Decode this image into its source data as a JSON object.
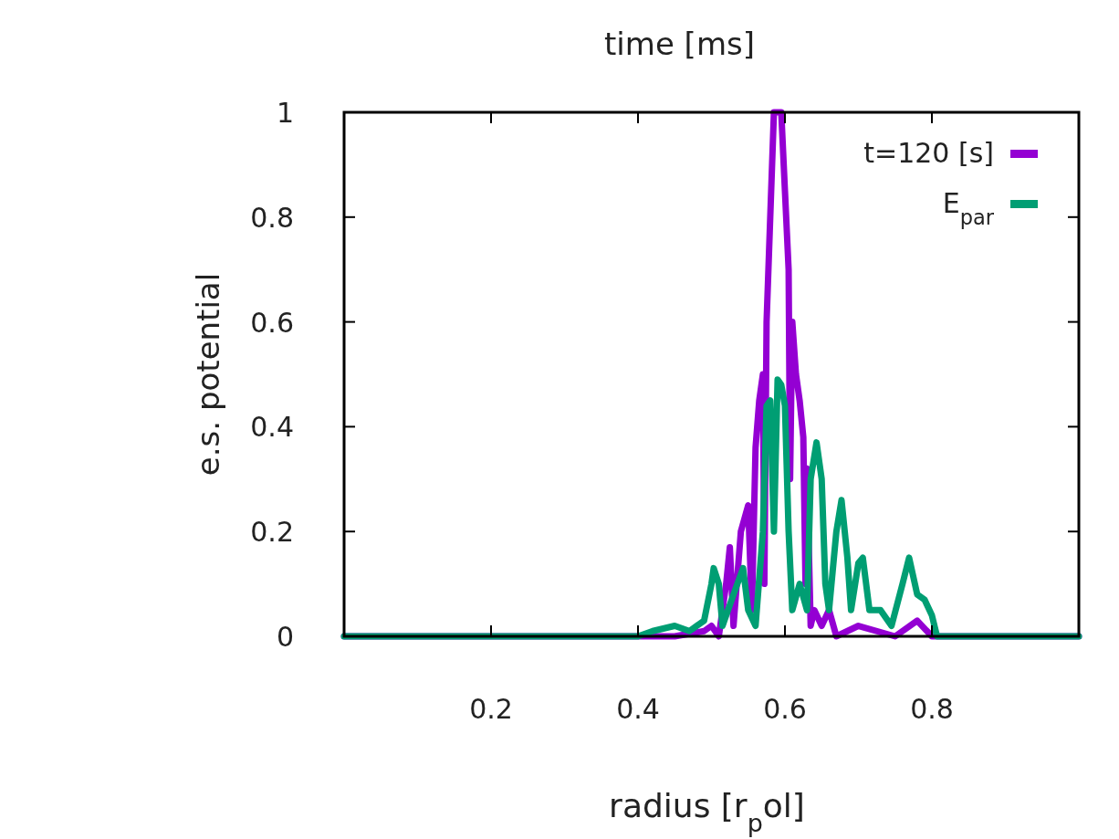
{
  "chart_data": {
    "type": "line",
    "title": "time [ms]",
    "xlabel": "radius [r$_{p}$ol]",
    "ylabel": "e.s. potential",
    "xlim": [
      0,
      1
    ],
    "ylim": [
      0,
      1
    ],
    "xticks": [
      0.2,
      0.4,
      0.6,
      0.8
    ],
    "yticks": [
      0,
      0.2,
      0.4,
      0.6,
      0.8,
      1
    ],
    "grid": false,
    "legend": "top right",
    "line_style": "solid",
    "marker": "none",
    "series": [
      {
        "name": "t=120 [s]",
        "color": "#9400d3",
        "x": [
          0,
          0.45,
          0.49,
          0.5,
          0.51,
          0.52,
          0.525,
          0.53,
          0.54,
          0.55,
          0.555,
          0.56,
          0.565,
          0.57,
          0.572,
          0.575,
          0.58,
          0.585,
          0.59,
          0.595,
          0.6,
          0.605,
          0.607,
          0.61,
          0.615,
          0.62,
          0.625,
          0.628,
          0.63,
          0.635,
          0.64,
          0.65,
          0.66,
          0.67,
          0.7,
          0.75,
          0.78,
          0.8,
          1
        ],
        "values": [
          0,
          0,
          0.01,
          0.02,
          0,
          0.1,
          0.17,
          0.02,
          0.2,
          0.25,
          0.05,
          0.36,
          0.45,
          0.5,
          0.1,
          0.6,
          0.8,
          1,
          1,
          1,
          0.85,
          0.7,
          0.3,
          0.6,
          0.5,
          0.45,
          0.38,
          0.1,
          0.32,
          0.02,
          0.05,
          0.02,
          0.05,
          0,
          0.02,
          0,
          0.03,
          0,
          0
        ]
      },
      {
        "name": "E$_{par}$",
        "color": "#009e73",
        "x": [
          0,
          0.4,
          0.42,
          0.45,
          0.47,
          0.49,
          0.5,
          0.503,
          0.51,
          0.515,
          0.53,
          0.543,
          0.55,
          0.56,
          0.57,
          0.575,
          0.58,
          0.585,
          0.59,
          0.595,
          0.6,
          0.605,
          0.61,
          0.62,
          0.63,
          0.635,
          0.643,
          0.65,
          0.655,
          0.66,
          0.67,
          0.677,
          0.685,
          0.69,
          0.7,
          0.706,
          0.715,
          0.73,
          0.745,
          0.76,
          0.769,
          0.78,
          0.79,
          0.8,
          0.807,
          1
        ],
        "values": [
          0,
          0,
          0.01,
          0.02,
          0.01,
          0.03,
          0.1,
          0.13,
          0.1,
          0.02,
          0.08,
          0.13,
          0.05,
          0.02,
          0.2,
          0.44,
          0.45,
          0.2,
          0.49,
          0.48,
          0.44,
          0.2,
          0.05,
          0.1,
          0.05,
          0.3,
          0.37,
          0.3,
          0.1,
          0.05,
          0.2,
          0.26,
          0.15,
          0.05,
          0.14,
          0.15,
          0.05,
          0.05,
          0.02,
          0.1,
          0.15,
          0.08,
          0.07,
          0.04,
          0,
          0
        ]
      }
    ]
  }
}
